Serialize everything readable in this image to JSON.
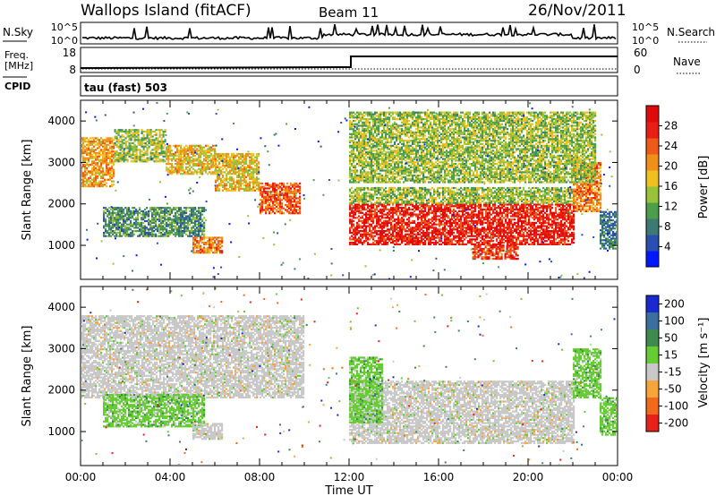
{
  "header": {
    "station": "Wallops Island (fitACF)",
    "beam": "Beam 11",
    "date": "26/Nov/2011"
  },
  "status_panels": {
    "nsky_label": "N.Sky",
    "nsky_ticks": [
      "10^5",
      "10^0"
    ],
    "nsearch_label": "N.Search",
    "nsearch_ticks": [
      "10^5",
      "10^0"
    ],
    "freq_label": "Freq.",
    "freq_unit": "[MHz]",
    "freq_ticks": [
      "18",
      "8"
    ],
    "nave_label": "Nave",
    "nave_ticks": [
      "60",
      "0"
    ],
    "cpid_label": "CPID",
    "cpid_value": "tau (fast) 503"
  },
  "chart_data": [
    {
      "type": "heatmap",
      "name": "power",
      "ylabel": "Slant Range [km]",
      "yticks": [
        "4000",
        "3000",
        "2000",
        "1000"
      ],
      "ytick_values": [
        4000,
        3000,
        2000,
        1000
      ],
      "ylim": [
        180,
        4500
      ],
      "xlim": [
        0,
        24
      ],
      "colorbar": {
        "label": "Power [dB]",
        "ticks": [
          "28",
          "24",
          "20",
          "16",
          "12",
          "8",
          "4"
        ],
        "tick_values": [
          28,
          24,
          20,
          16,
          12,
          8,
          4
        ],
        "range": [
          0,
          32
        ],
        "colors": [
          "#0018ff",
          "#2a4fb0",
          "#3d7a73",
          "#4d9e4a",
          "#99c23b",
          "#f0c020",
          "#f0901a",
          "#f05a18",
          "#e81e14",
          "#e00a0a"
        ]
      },
      "regions": [
        {
          "t0": 0.0,
          "t1": 1.5,
          "r0": 2400,
          "r1": 3600,
          "value": 20
        },
        {
          "t0": 1.5,
          "t1": 3.8,
          "r0": 3000,
          "r1": 3800,
          "value": 14
        },
        {
          "t0": 3.8,
          "t1": 6.0,
          "r0": 2700,
          "r1": 3400,
          "value": 18
        },
        {
          "t0": 6.0,
          "t1": 8.0,
          "r0": 2300,
          "r1": 3200,
          "value": 18
        },
        {
          "t0": 8.0,
          "t1": 9.8,
          "r0": 1750,
          "r1": 2500,
          "value": 24
        },
        {
          "t0": 1.0,
          "t1": 5.5,
          "r0": 1200,
          "r1": 1900,
          "value": 10
        },
        {
          "t0": 5.0,
          "t1": 6.3,
          "r0": 800,
          "r1": 1200,
          "value": 22
        },
        {
          "t0": 12.0,
          "t1": 22.0,
          "r0": 1000,
          "r1": 2000,
          "value": 28
        },
        {
          "t0": 17.5,
          "t1": 19.5,
          "r0": 650,
          "r1": 1000,
          "value": 26
        },
        {
          "t0": 12.0,
          "t1": 22.0,
          "r0": 2000,
          "r1": 2400,
          "value": 14
        },
        {
          "t0": 22.0,
          "t1": 23.2,
          "r0": 1800,
          "r1": 3000,
          "value": 22
        },
        {
          "t0": 12.0,
          "t1": 23.0,
          "r0": 2500,
          "r1": 4200,
          "value": 14
        },
        {
          "t0": 23.2,
          "t1": 24.0,
          "r0": 900,
          "r1": 1800,
          "value": 8
        }
      ]
    },
    {
      "type": "heatmap",
      "name": "velocity",
      "ylabel": "Slant Range [km]",
      "yticks": [
        "4000",
        "3000",
        "2000",
        "1000"
      ],
      "ytick_values": [
        4000,
        3000,
        2000,
        1000
      ],
      "ylim": [
        180,
        4500
      ],
      "xlim": [
        0,
        24
      ],
      "xlabel": "Time UT",
      "xticks": [
        "00:00",
        "04:00",
        "08:00",
        "12:00",
        "16:00",
        "20:00",
        "00:00"
      ],
      "xtick_values": [
        0,
        4,
        8,
        12,
        16,
        20,
        24
      ],
      "colorbar": {
        "label": "Velocity [m s⁻¹]",
        "ticks": [
          "200",
          "100",
          "50",
          "15",
          "-15",
          "-50",
          "-100",
          "-200"
        ],
        "colors": [
          "#1a2ad0",
          "#3a6fa0",
          "#3e8a50",
          "#66cc33",
          "#c8c8c8",
          "#f7a53a",
          "#f06a1a",
          "#e8201a"
        ]
      },
      "regions": [
        {
          "t0": 0.0,
          "t1": 10.0,
          "r0": 1800,
          "r1": 3800,
          "value": "0"
        },
        {
          "t0": 1.0,
          "t1": 5.5,
          "r0": 1100,
          "r1": 1900,
          "value": "+30"
        },
        {
          "t0": 5.0,
          "t1": 6.3,
          "r0": 800,
          "r1": 1200,
          "value": "0"
        },
        {
          "t0": 12.0,
          "t1": 22.0,
          "r0": 700,
          "r1": 2200,
          "value": "0"
        },
        {
          "t0": 12.0,
          "t1": 13.5,
          "r0": 1200,
          "r1": 2800,
          "value": "+30"
        },
        {
          "t0": 22.0,
          "t1": 23.2,
          "r0": 1800,
          "r1": 3000,
          "value": "+30"
        },
        {
          "t0": 23.2,
          "t1": 24.0,
          "r0": 900,
          "r1": 1800,
          "value": "+30"
        }
      ]
    }
  ]
}
